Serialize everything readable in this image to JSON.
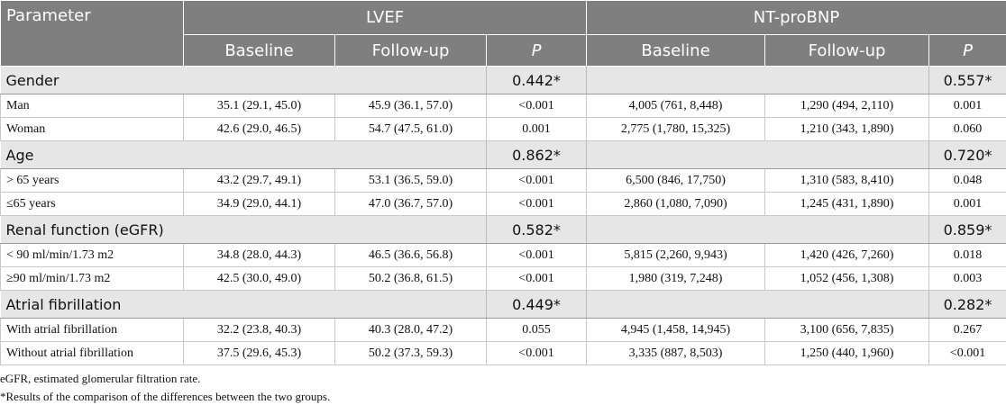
{
  "header": {
    "parameter": "Parameter",
    "group_lvef": "LVEF",
    "group_ntprobnp": "NT-proBNP",
    "baseline": "Baseline",
    "followup": "Follow-up",
    "p": "P"
  },
  "sections": [
    {
      "name": "Gender",
      "p_lvef": "0.442*",
      "p_bnp": "0.557*",
      "rows": [
        {
          "label": "Man",
          "lvef_base": "35.1 (29.1, 45.0)",
          "lvef_follow": "45.9 (36.1, 57.0)",
          "lvef_p": "<0.001",
          "bnp_base": "4,005 (761, 8,448)",
          "bnp_follow": "1,290 (494, 2,110)",
          "bnp_p": "0.001"
        },
        {
          "label": "Woman",
          "lvef_base": "42.6 (29.0, 46.5)",
          "lvef_follow": "54.7 (47.5, 61.0)",
          "lvef_p": "0.001",
          "bnp_base": "2,775 (1,780, 15,325)",
          "bnp_follow": "1,210 (343, 1,890)",
          "bnp_p": "0.060"
        }
      ]
    },
    {
      "name": "Age",
      "p_lvef": "0.862*",
      "p_bnp": "0.720*",
      "rows": [
        {
          "label": "> 65 years",
          "lvef_base": "43.2 (29.7, 49.1)",
          "lvef_follow": "53.1 (36.5, 59.0)",
          "lvef_p": "<0.001",
          "bnp_base": "6,500 (846, 17,750)",
          "bnp_follow": "1,310 (583, 8,410)",
          "bnp_p": "0.048"
        },
        {
          "label": "≤65 years",
          "lvef_base": "34.9 (29.0, 44.1)",
          "lvef_follow": "47.0 (36.7, 57.0)",
          "lvef_p": "<0.001",
          "bnp_base": "2,860 (1,080, 7,090)",
          "bnp_follow": "1,245 (431, 1,890)",
          "bnp_p": "0.001"
        }
      ]
    },
    {
      "name": "Renal function (eGFR)",
      "p_lvef": "0.582*",
      "p_bnp": "0.859*",
      "rows": [
        {
          "label": "< 90 ml/min/1.73 m2",
          "lvef_base": "34.8 (28.0, 44.3)",
          "lvef_follow": "46.5 (36.6, 56.8)",
          "lvef_p": "<0.001",
          "bnp_base": "5,815 (2,260, 9,943)",
          "bnp_follow": "1,420 (426, 7,260)",
          "bnp_p": "0.018"
        },
        {
          "label": "≥90 ml/min/1.73 m2",
          "lvef_base": "42.5 (30.0, 49.0)",
          "lvef_follow": "50.2 (36.8, 61.5)",
          "lvef_p": "<0.001",
          "bnp_base": "1,980 (319, 7,248)",
          "bnp_follow": "1,052 (456, 1,308)",
          "bnp_p": "0.003"
        }
      ]
    },
    {
      "name": "Atrial fibrillation",
      "p_lvef": "0.449*",
      "p_bnp": "0.282*",
      "rows": [
        {
          "label": "With atrial fibrillation",
          "lvef_base": "32.2 (23.8, 40.3)",
          "lvef_follow": "40.3 (28.0, 47.2)",
          "lvef_p": "0.055",
          "bnp_base": "4,945 (1,458, 14,945)",
          "bnp_follow": "3,100 (656, 7,835)",
          "bnp_p": "0.267"
        },
        {
          "label": "Without atrial fibrillation",
          "lvef_base": "37.5 (29.6, 45.3)",
          "lvef_follow": "50.2 (37.3, 59.3)",
          "lvef_p": "<0.001",
          "bnp_base": "3,335 (887, 8,503)",
          "bnp_follow": "1,250 (440, 1,960)",
          "bnp_p": "<0.001"
        }
      ]
    }
  ],
  "footnotes": [
    "eGFR, estimated glomerular filtration rate.",
    "*Results of the comparison of the differences between the two groups."
  ]
}
